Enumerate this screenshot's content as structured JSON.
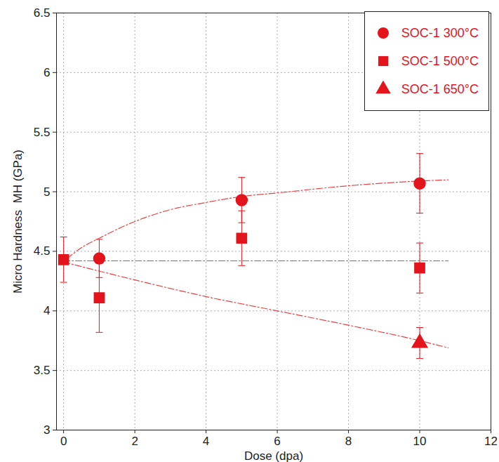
{
  "chart_data": {
    "type": "scatter",
    "xlabel": "Dose (dpa)",
    "ylabel": "Micro Hardness  MH (GPa)",
    "xlim": [
      -0.2,
      12
    ],
    "ylim": [
      3,
      6.5
    ],
    "xticks": [
      0,
      2,
      4,
      6,
      8,
      10,
      12
    ],
    "yticks": [
      3,
      3.5,
      4,
      4.5,
      5,
      5.5,
      6,
      6.5
    ],
    "grid": true,
    "legend": "upper right",
    "series": [
      {
        "name": "SOC-1 300°C",
        "color": "#e3141c",
        "marker": "circle",
        "x": [
          1,
          5,
          10
        ],
        "values": [
          4.44,
          4.93,
          5.07
        ],
        "errors": [
          0.16,
          0.19,
          0.25
        ]
      },
      {
        "name": "SOC-1 500°C",
        "color": "#e3141c",
        "marker": "square",
        "x": [
          0,
          1,
          5,
          10
        ],
        "values": [
          4.43,
          4.11,
          4.61,
          4.36
        ],
        "errors": [
          0.19,
          0.29,
          0.23,
          0.21
        ]
      },
      {
        "name": "SOC-1 650°C",
        "color": "#e3141c",
        "marker": "triangle",
        "x": [
          10
        ],
        "values": [
          3.73
        ],
        "errors": [
          0.13
        ]
      }
    ],
    "trend_lines": [
      {
        "color": "#e3141c",
        "line_style": "dashdot",
        "x": [
          0.1,
          0.5,
          1,
          2,
          3,
          4,
          5,
          6,
          8,
          10,
          10.8
        ],
        "values": [
          4.44,
          4.53,
          4.61,
          4.75,
          4.85,
          4.91,
          4.96,
          4.99,
          5.05,
          5.09,
          5.1
        ]
      },
      {
        "color": "#e3141c",
        "line_style": "dashdot",
        "x": [
          0,
          10.8
        ],
        "values": [
          4.42,
          4.42
        ]
      },
      {
        "color": "#e3141c",
        "line_style": "dashdot",
        "x": [
          0,
          2,
          4,
          6,
          8,
          10,
          10.8
        ],
        "values": [
          4.41,
          4.26,
          4.12,
          4.0,
          3.88,
          3.75,
          3.69
        ]
      }
    ]
  }
}
